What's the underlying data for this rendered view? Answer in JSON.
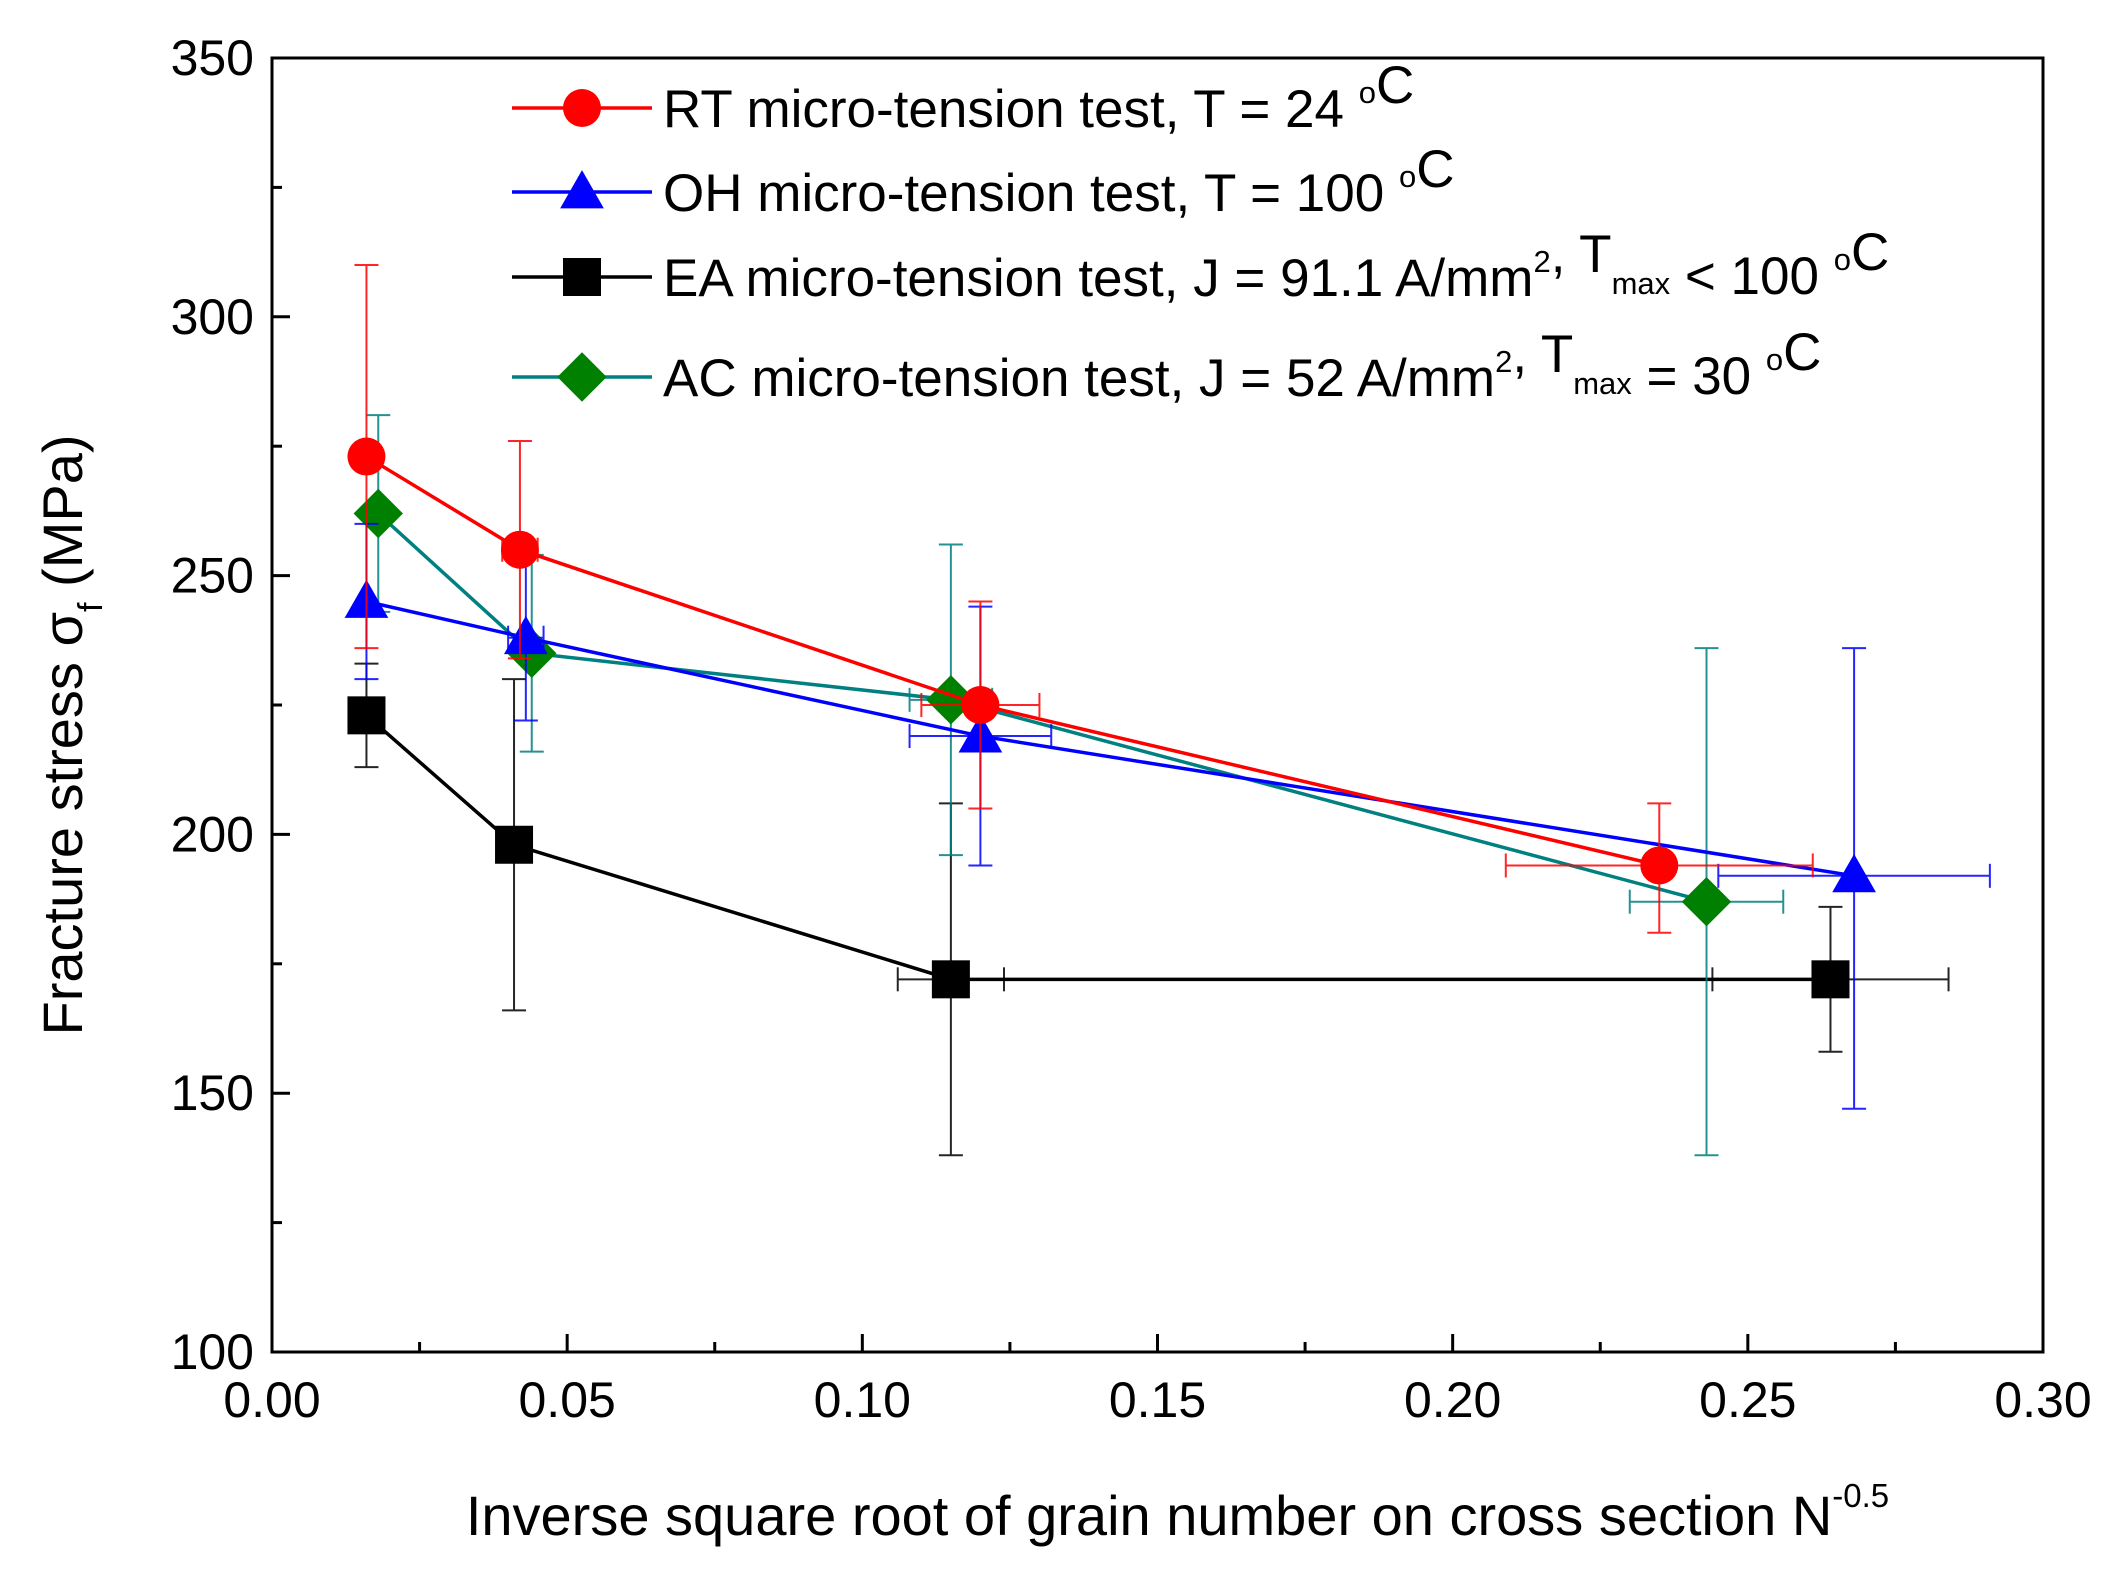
{
  "chart_data": {
    "type": "scatter",
    "xlabel": "Inverse square root of grain number on cross section N",
    "xlabel_sup": "-0.5",
    "ylabel": "Fracture stress σ",
    "ylabel_sub": "f",
    "ylabel_unit": "(MPa)",
    "xlim": [
      0.0,
      0.3
    ],
    "ylim": [
      100,
      350
    ],
    "grid": false,
    "legend_position": "top-right",
    "xticks": [
      "0.00",
      "0.05",
      "0.10",
      "0.15",
      "0.20",
      "0.25",
      "0.30"
    ],
    "yticks": [
      "100",
      "150",
      "200",
      "250",
      "300",
      "350"
    ],
    "series": [
      {
        "name": "RT micro-tension test, T = 24 °C",
        "legend_parts": [
          {
            "t": "RT micro-tension test, T = 24 "
          },
          {
            "t": "o",
            "s": "sup"
          },
          {
            "t": "C"
          }
        ],
        "color": "#ff0000",
        "marker": "circle",
        "points": [
          {
            "x": 0.016,
            "y": 273,
            "y_low": 236,
            "y_high": 310,
            "x_low": 0.016,
            "x_high": 0.016
          },
          {
            "x": 0.042,
            "y": 255,
            "y_low": 234,
            "y_high": 276,
            "x_low": 0.039,
            "x_high": 0.045
          },
          {
            "x": 0.12,
            "y": 225,
            "y_low": 205,
            "y_high": 245,
            "x_low": 0.11,
            "x_high": 0.13
          },
          {
            "x": 0.235,
            "y": 194,
            "y_low": 181,
            "y_high": 206,
            "x_low": 0.209,
            "x_high": 0.261
          }
        ]
      },
      {
        "name": "OH micro-tension test, T = 100 °C",
        "legend_parts": [
          {
            "t": "OH micro-tension test, T = 100 "
          },
          {
            "t": "o",
            "s": "sup"
          },
          {
            "t": "C"
          }
        ],
        "color": "#0000ff",
        "marker": "triangle",
        "points": [
          {
            "x": 0.016,
            "y": 245,
            "y_low": 230,
            "y_high": 260,
            "x_low": 0.016,
            "x_high": 0.016
          },
          {
            "x": 0.043,
            "y": 238,
            "y_low": 222,
            "y_high": 254,
            "x_low": 0.04,
            "x_high": 0.046
          },
          {
            "x": 0.12,
            "y": 219,
            "y_low": 194,
            "y_high": 244,
            "x_low": 0.108,
            "x_high": 0.132
          },
          {
            "x": 0.268,
            "y": 192,
            "y_low": 147,
            "y_high": 236,
            "x_low": 0.245,
            "x_high": 0.291
          }
        ]
      },
      {
        "name": "EA micro-tension test, J = 91.1 A/mm², Tmax < 100 °C",
        "legend_parts": [
          {
            "t": "EA micro-tension test, J = 91.1 A/mm"
          },
          {
            "t": "2",
            "s": "sup"
          },
          {
            "t": ", T"
          },
          {
            "t": "max",
            "s": "sub"
          },
          {
            "t": " < 100 "
          },
          {
            "t": "o",
            "s": "sup"
          },
          {
            "t": "C"
          }
        ],
        "color": "#000000",
        "marker": "square",
        "points": [
          {
            "x": 0.016,
            "y": 223,
            "y_low": 213,
            "y_high": 233,
            "x_low": 0.016,
            "x_high": 0.016
          },
          {
            "x": 0.041,
            "y": 198,
            "y_low": 166,
            "y_high": 230,
            "x_low": 0.041,
            "x_high": 0.041
          },
          {
            "x": 0.115,
            "y": 172,
            "y_low": 138,
            "y_high": 206,
            "x_low": 0.106,
            "x_high": 0.124
          },
          {
            "x": 0.264,
            "y": 172,
            "y_low": 158,
            "y_high": 186,
            "x_low": 0.244,
            "x_high": 0.284
          }
        ]
      },
      {
        "name": "AC micro-tension test, J = 52 A/mm², Tmax = 30 °C",
        "legend_parts": [
          {
            "t": "AC micro-tension test, J = 52 A/mm"
          },
          {
            "t": "2",
            "s": "sup"
          },
          {
            "t": ", T"
          },
          {
            "t": "max",
            "s": "sub"
          },
          {
            "t": " = 30 "
          },
          {
            "t": "o",
            "s": "sup"
          },
          {
            "t": "C"
          }
        ],
        "color": "#008080",
        "marker_color": "#008000",
        "marker": "diamond",
        "points": [
          {
            "x": 0.018,
            "y": 262,
            "y_low": 243,
            "y_high": 281,
            "x_low": 0.018,
            "x_high": 0.018
          },
          {
            "x": 0.044,
            "y": 235,
            "y_low": 216,
            "y_high": 254,
            "x_low": 0.044,
            "x_high": 0.044
          },
          {
            "x": 0.115,
            "y": 226,
            "y_low": 196,
            "y_high": 256,
            "x_low": 0.108,
            "x_high": 0.122
          },
          {
            "x": 0.243,
            "y": 187,
            "y_low": 138,
            "y_high": 236,
            "x_low": 0.23,
            "x_high": 0.256
          }
        ]
      }
    ]
  }
}
